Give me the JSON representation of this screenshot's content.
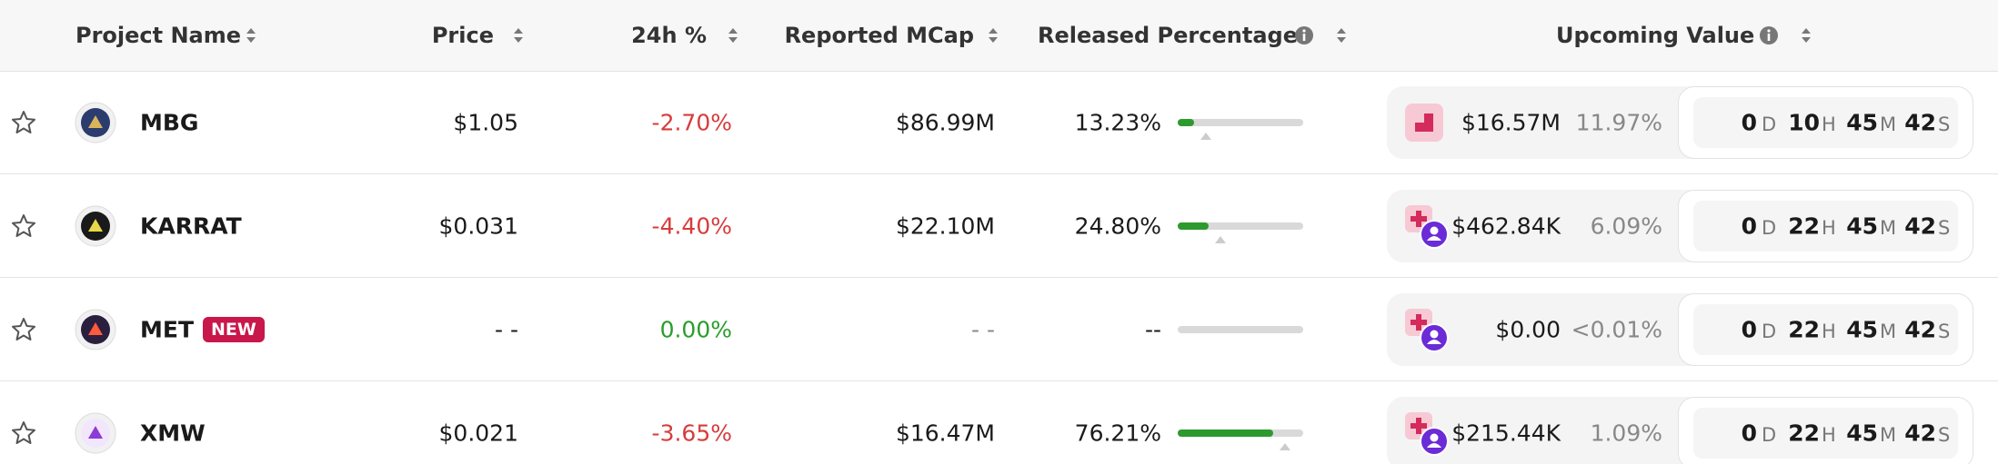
{
  "header": {
    "columns": [
      "Project Name",
      "Price",
      "24h %",
      "Reported MCap",
      "Released Percentage",
      "Upcoming Value"
    ]
  },
  "countdown_units": [
    "D",
    "H",
    "M",
    "S"
  ],
  "rows": [
    {
      "name": "MBG",
      "price": "$1.05",
      "change": "-2.70%",
      "mcap": "$86.99M",
      "released": "13.23%",
      "upcoming_value": "$16.57M",
      "upcoming_pct": "11.97%",
      "countdown": [
        "0",
        "10",
        "45",
        "42"
      ]
    },
    {
      "name": "KARRAT",
      "price": "$0.031",
      "change": "-4.40%",
      "mcap": "$22.10M",
      "released": "24.80%",
      "upcoming_value": "$462.84K",
      "upcoming_pct": "6.09%",
      "countdown": [
        "0",
        "22",
        "45",
        "42"
      ]
    },
    {
      "name": "MET",
      "badge": "NEW",
      "price": "- -",
      "change": "0.00%",
      "mcap": "- -",
      "released": "--",
      "upcoming_value": "$0.00",
      "upcoming_pct": "<0.01%",
      "countdown": [
        "0",
        "22",
        "45",
        "42"
      ]
    },
    {
      "name": "XMW",
      "price": "$0.021",
      "change": "-3.65%",
      "mcap": "$16.47M",
      "released": "76.21%",
      "upcoming_value": "$215.44K",
      "upcoming_pct": "1.09%",
      "countdown": [
        "0",
        "22",
        "45",
        "42"
      ]
    }
  ]
}
